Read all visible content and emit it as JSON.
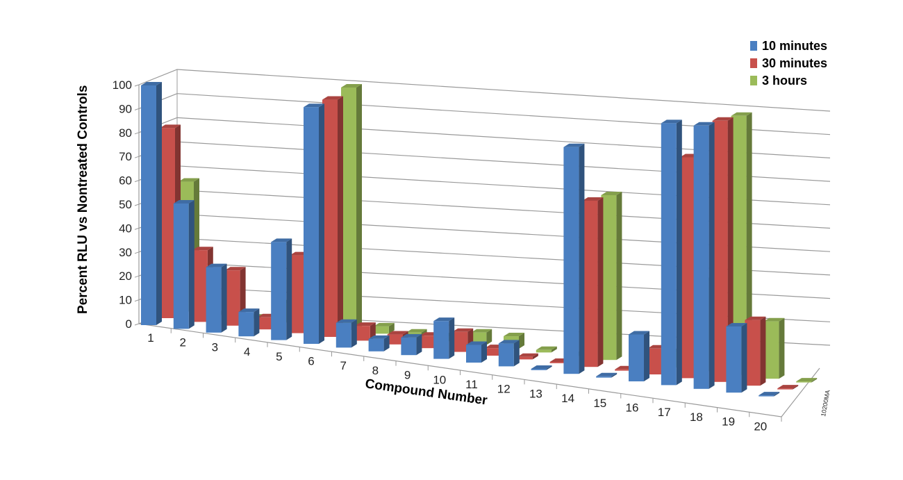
{
  "chart_data": {
    "type": "bar",
    "subtype": "3d-clustered",
    "xlabel": "Compound Number",
    "ylabel": "Percent RLU vs Nontreated Controls",
    "ylim": [
      0,
      100
    ],
    "yticks": [
      "0",
      "10",
      "20",
      "30",
      "40",
      "50",
      "60",
      "70",
      "80",
      "90",
      "100"
    ],
    "categories": [
      "1",
      "2",
      "3",
      "4",
      "5",
      "6",
      "7",
      "8",
      "9",
      "10",
      "11",
      "12",
      "13",
      "14",
      "15",
      "16",
      "17",
      "18",
      "19",
      "20"
    ],
    "series": [
      {
        "name": "10 minutes",
        "color": "#4a7fc1",
        "values": [
          100,
          52,
          27,
          10,
          40,
          96,
          10,
          5,
          7,
          15,
          7,
          9,
          0.5,
          88,
          0.5,
          18,
          100,
          100,
          25,
          0
        ]
      },
      {
        "name": "30 minutes",
        "color": "#c8504b",
        "values": [
          80,
          30,
          23,
          5,
          32,
          97,
          6,
          4,
          5,
          8,
          3,
          1,
          0.5,
          65,
          0.5,
          10,
          85,
          100,
          25,
          0
        ]
      },
      {
        "name": "3 hours",
        "color": "#9bbb59",
        "values": [
          55,
          0,
          0,
          8,
          0,
          100,
          3,
          2,
          2,
          5,
          5,
          1,
          0.5,
          65,
          0.5,
          6,
          35,
          100,
          22,
          0
        ]
      }
    ],
    "grid": true,
    "legend": "top-right",
    "annotation": "10200MA"
  }
}
